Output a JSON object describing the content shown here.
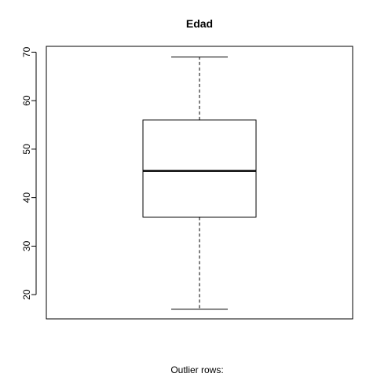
{
  "chart_data": {
    "type": "boxplot",
    "title": "Edad",
    "xlabel": "",
    "ylabel": "",
    "ylim": [
      15,
      71.2
    ],
    "yticks": [
      20,
      30,
      40,
      50,
      60,
      70
    ],
    "grid": false,
    "series": [
      {
        "whisker_low": 17,
        "q1": 36,
        "median": 45.5,
        "q3": 56,
        "whisker_high": 69,
        "outliers": []
      }
    ]
  },
  "footer": {
    "outlier_rows_label": "Outlier rows:"
  }
}
